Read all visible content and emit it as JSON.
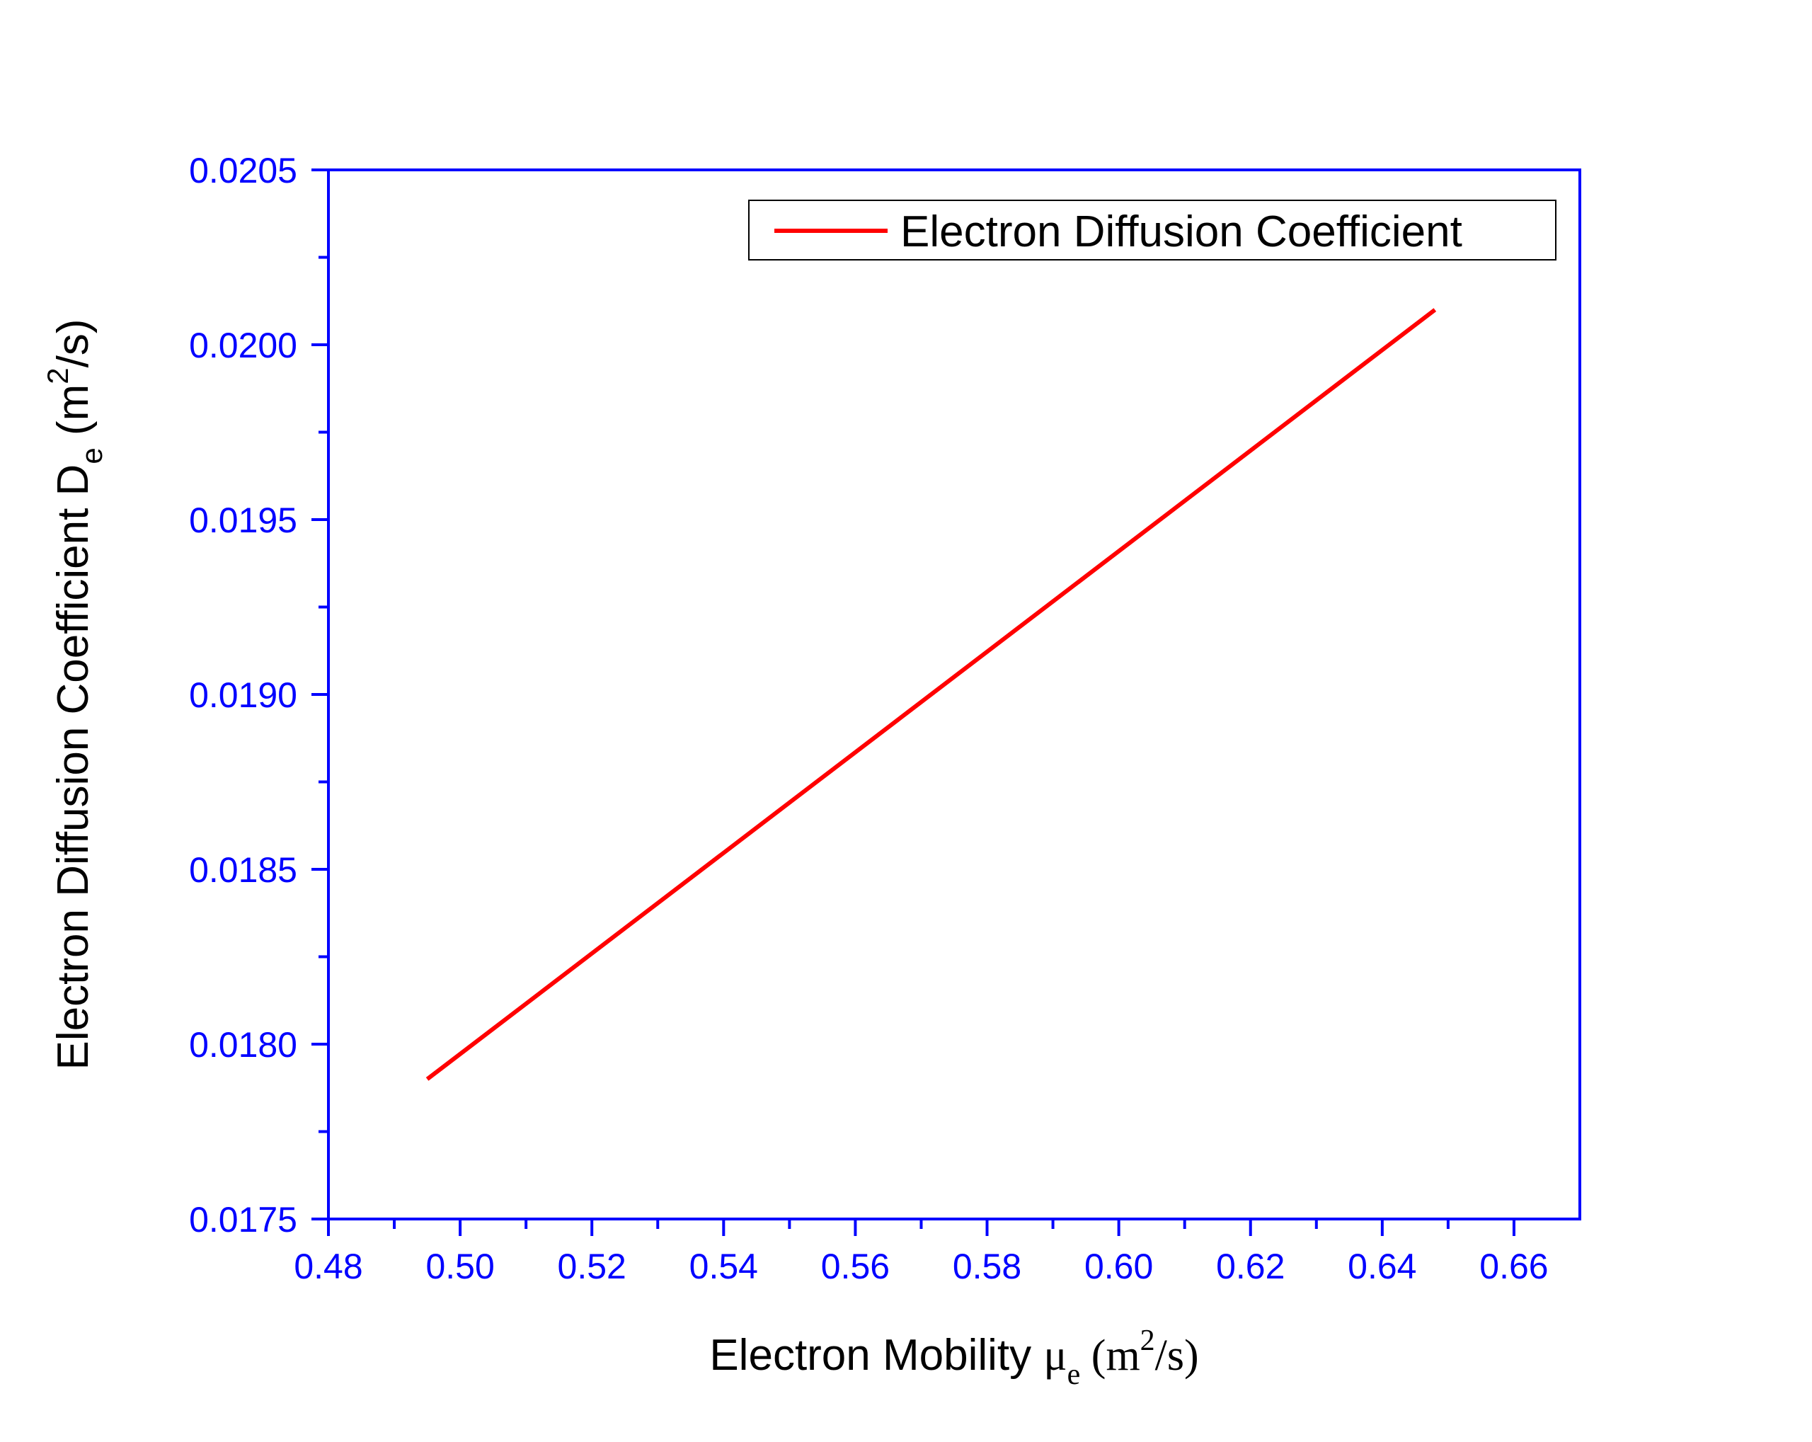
{
  "chart_data": {
    "type": "line",
    "title": "",
    "x": [
      0.495,
      0.648
    ],
    "series": [
      {
        "name": "Electron Diffusion Coefficient",
        "x": [
          0.495,
          0.648
        ],
        "y": [
          0.0179,
          0.0201
        ],
        "color": "#ff0000"
      }
    ],
    "xlim": [
      0.48,
      0.67
    ],
    "ylim": [
      0.0175,
      0.0205
    ],
    "xticks": [
      "0.48",
      "0.50",
      "0.52",
      "0.54",
      "0.56",
      "0.58",
      "0.60",
      "0.62",
      "0.64",
      "0.66"
    ],
    "yticks": [
      "0.0175",
      "0.0180",
      "0.0185",
      "0.0190",
      "0.0195",
      "0.0200",
      "0.0205"
    ],
    "xlabel": {
      "main": "Electron Mobility ",
      "symbol": "μ",
      "sub": "e",
      "unit_open": " (m",
      "sup": "2",
      "unit_close": "/s)"
    },
    "ylabel": {
      "main": "Electron Diffusion Coefficient D",
      "sub": "e",
      "unit_open": " (m",
      "sup": "2",
      "unit_close": "/s)"
    },
    "legend_position": "top-right",
    "grid": false,
    "axis_color": "#0000ff",
    "line_color": "#ff0000"
  }
}
